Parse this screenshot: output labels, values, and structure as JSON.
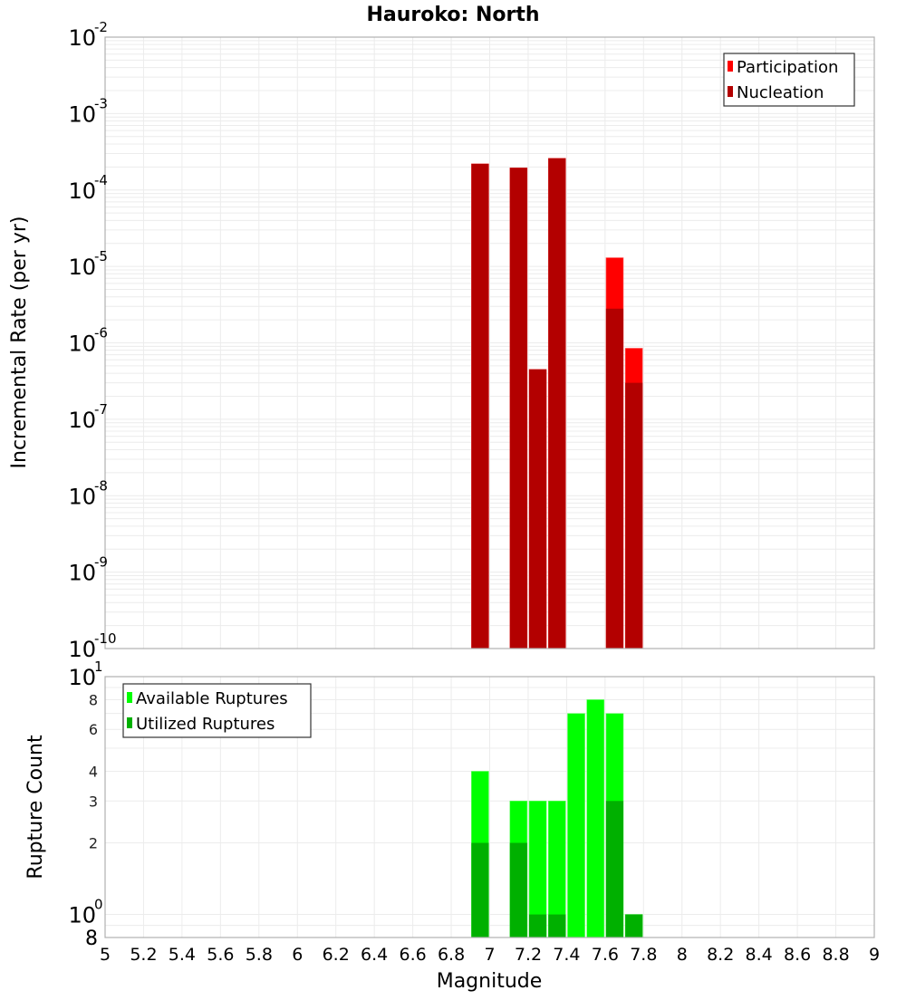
{
  "chart_data": [
    {
      "type": "bar",
      "title": "Hauroko: North",
      "xlabel": "Magnitude",
      "ylabel": "Incremental Rate (per yr)",
      "yscale": "log",
      "ylim": [
        1e-10,
        0.01
      ],
      "xlim": [
        5,
        9
      ],
      "grid": true,
      "legend_position": "top-right",
      "y_tick_exponents": [
        -2,
        -3,
        -4,
        -5,
        -6,
        -7,
        -8,
        -9,
        -10
      ],
      "x": [
        6.95,
        7.15,
        7.25,
        7.35,
        7.65,
        7.75
      ],
      "series": [
        {
          "name": "Participation",
          "color": "#ff0000",
          "values": [
            0.00022,
            0.000195,
            4.5e-07,
            0.00026,
            1.3e-05,
            8.5e-07
          ]
        },
        {
          "name": "Nucleation",
          "color": "#b30000",
          "values": [
            0.00022,
            0.000195,
            4.5e-07,
            0.00026,
            2.8e-06,
            3e-07
          ]
        }
      ]
    },
    {
      "type": "bar",
      "title": "",
      "xlabel": "Magnitude",
      "ylabel": "Rupture Count",
      "yscale": "log",
      "ylim": [
        0.8,
        10
      ],
      "xlim": [
        5,
        9
      ],
      "grid": true,
      "legend_position": "top-left",
      "y_tick_labels": [
        "10^1",
        "8",
        "6",
        "4",
        "3",
        "2",
        "10^0",
        "8"
      ],
      "x_tick_labels": [
        "5",
        "5.2",
        "5.4",
        "5.6",
        "5.8",
        "6",
        "6.2",
        "6.4",
        "6.6",
        "6.8",
        "7",
        "7.2",
        "7.4",
        "7.6",
        "7.8",
        "8",
        "8.2",
        "8.4",
        "8.6",
        "8.8",
        "9"
      ],
      "x": [
        6.95,
        7.15,
        7.25,
        7.35,
        7.45,
        7.55,
        7.65,
        7.75
      ],
      "series": [
        {
          "name": "Available Ruptures",
          "color": "#00ff00",
          "values": [
            4,
            3,
            3,
            3,
            7,
            8,
            7,
            1
          ]
        },
        {
          "name": "Utilized Ruptures",
          "color": "#00b000",
          "values": [
            2,
            2,
            1,
            1,
            0,
            0,
            3,
            1
          ]
        }
      ]
    }
  ],
  "labels": {
    "title": "Hauroko: North",
    "top_ylabel": "Incremental Rate (per yr)",
    "bottom_ylabel": "Rupture Count",
    "xlabel": "Magnitude",
    "legend_top": [
      "Participation",
      "Nucleation"
    ],
    "legend_bottom": [
      "Available Ruptures",
      "Utilized Ruptures"
    ]
  }
}
